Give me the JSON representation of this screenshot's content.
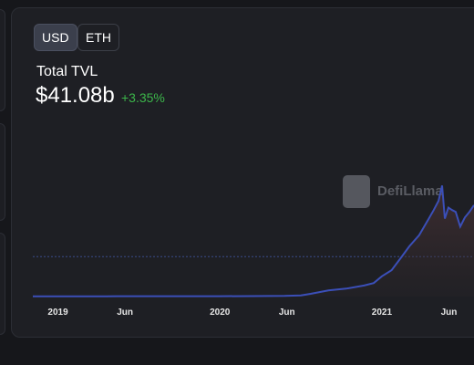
{
  "toggles": [
    "USD",
    "ETH"
  ],
  "summary": {
    "label": "Total TVL",
    "value": "$41.08b",
    "change": "+3.35%"
  },
  "watermark": "DefiLlama",
  "chart_data": {
    "type": "area",
    "color": "#3b4fb8",
    "x": [
      2018.845,
      2019.0,
      2019.3,
      2019.5,
      2019.8,
      2020.0,
      2020.2,
      2020.4,
      2020.5,
      2020.56,
      2020.67,
      2020.78,
      2020.89,
      2020.95,
      2021.0,
      2021.06,
      2021.12,
      2021.17,
      2021.23,
      2021.29,
      2021.32,
      2021.35,
      2021.372,
      2021.389,
      2021.411,
      2021.434,
      2021.456,
      2021.484,
      2021.513,
      2021.541,
      2021.569
    ],
    "values": [
      0.3,
      0.3,
      0.5,
      0.6,
      0.6,
      0.6,
      0.7,
      1.0,
      2.0,
      4.5,
      10,
      13,
      18,
      22,
      33,
      43,
      64,
      82,
      100,
      127,
      141,
      156,
      181,
      127,
      145,
      141,
      138,
      114,
      129,
      138,
      149
    ],
    "xlim": [
      2018.845,
      2021.569
    ],
    "ylim": [
      0,
      290
    ],
    "xticks": [
      2019,
      {
        "value": 2019.414,
        "label": "Jun"
      },
      2020,
      {
        "value": 2020.414,
        "label": "Jun"
      },
      2021,
      {
        "value": 2021.414,
        "label": "Jun"
      }
    ],
    "ygrid": [
      65
    ]
  }
}
